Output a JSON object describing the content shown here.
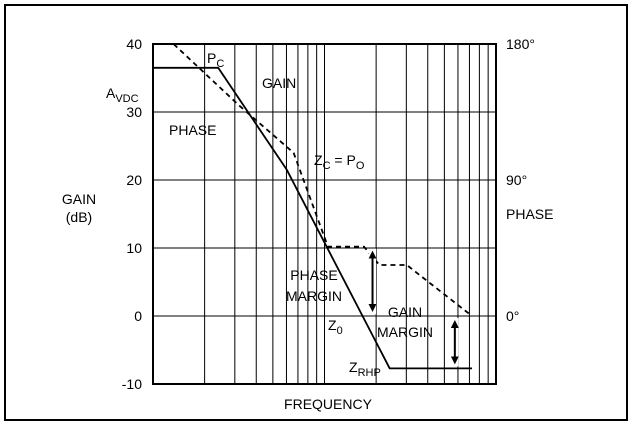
{
  "chart_data": {
    "type": "line",
    "title": "",
    "xlabel": "FREQUENCY",
    "ylabel": [
      "GAIN",
      "(dB)"
    ],
    "y2label": "PHASE",
    "ylim": [
      -10,
      40
    ],
    "yticks": [
      40,
      30,
      20,
      10,
      0,
      -10
    ],
    "y2ticks": [
      {
        "label": "180°",
        "value": 40
      },
      {
        "label": "90°",
        "value": 20
      },
      {
        "label": "0°",
        "value": 0
      }
    ],
    "grid": true,
    "x_decades": 5,
    "series": [
      {
        "name": "GAIN",
        "style": "solid",
        "x": [
          0.0,
          0.38,
          0.78,
          1.38,
          1.86
        ],
        "y": [
          36.5,
          36.5,
          21.5,
          -7.7,
          -7.7
        ]
      },
      {
        "name": "PHASE",
        "style": "dashed",
        "x": [
          0.12,
          0.5,
          0.82,
          1.02,
          1.08,
          1.23,
          1.32,
          1.48,
          1.86
        ],
        "y": [
          40.0,
          31.0,
          24.0,
          10.2,
          10.2,
          10.2,
          7.5,
          7.5,
          0.0
        ]
      }
    ],
    "annotations": {
      "pc": {
        "main": "P",
        "sub": "C"
      },
      "gain": "GAIN",
      "avdc": {
        "main": "A",
        "sub": "VDC"
      },
      "phase": "PHASE",
      "zc": {
        "main": "Z",
        "sub": "C",
        "mid": " = P",
        "sub2": "O"
      },
      "phase_margin": [
        "PHASE",
        "MARGIN"
      ],
      "gain_margin": [
        "GAIN",
        "MARGIN"
      ],
      "z0": {
        "main": "Z",
        "sub": "0"
      },
      "zrhp": {
        "main": "Z",
        "sub": "RHP"
      }
    },
    "margins": {
      "phase_margin": {
        "x": 1.28,
        "from": 10.2,
        "to": 0.0
      },
      "gain_margin": {
        "x": 1.76,
        "from": 0.0,
        "to": -7.7
      }
    }
  }
}
